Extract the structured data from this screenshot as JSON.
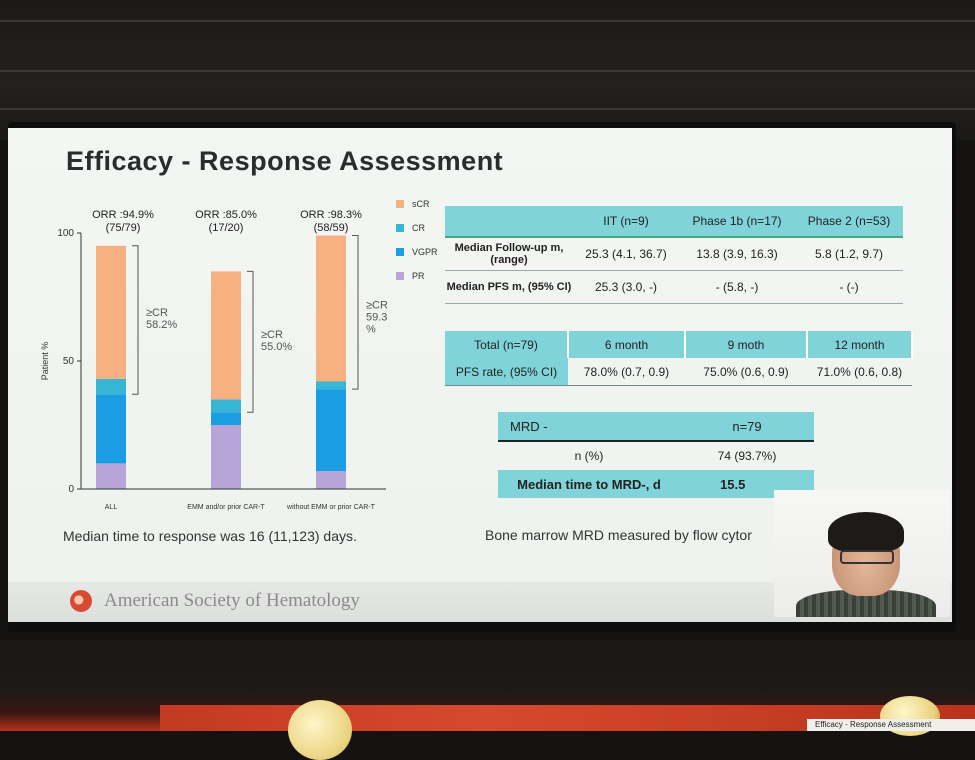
{
  "slide": {
    "title": "Efficacy - Response Assessment",
    "legend": [
      {
        "label": "sCR",
        "color": "#f6b081"
      },
      {
        "label": "CR",
        "color": "#36b6d4"
      },
      {
        "label": "VGPR",
        "color": "#1a9de3"
      },
      {
        "label": "PR",
        "color": "#b6a5d6"
      }
    ],
    "caption_left": "Median time to response was 16 (11,123) days.",
    "caption_right": "Bone marrow MRD measured by flow cytor",
    "table_followup": {
      "headers": [
        "",
        "IIT (n=9)",
        "Phase 1b (n=17)",
        "Phase 2 (n=53)"
      ],
      "rows": [
        [
          "Median Follow-up m, (range)",
          "25.3 (4.1, 36.7)",
          "13.8 (3.9, 16.3)",
          "5.8 (1.2, 9.7)"
        ],
        [
          "Median PFS m, (95% CI)",
          "25.3 (3.0, -)",
          "- (5.8, -)",
          "- (-)"
        ]
      ]
    },
    "table_pfs": {
      "headers": [
        "Total (n=79)",
        "6 month",
        "9 moth",
        "12 month"
      ],
      "row": [
        "PFS rate, (95% CI)",
        "78.0% (0.7, 0.9)",
        "75.0% (0.6, 0.9)",
        "71.0% (0.6, 0.8)"
      ]
    },
    "table_mrd": {
      "header": [
        "MRD -",
        "n=79"
      ],
      "row1": [
        "n (%)",
        "74 (93.7%)"
      ],
      "row2": [
        "Median time to MRD-, d",
        "15.5"
      ]
    },
    "footer_org": "American Society of Hematology"
  },
  "chart_data": {
    "type": "bar",
    "stacked": true,
    "ylabel": "Patient %",
    "ylim": [
      0,
      100
    ],
    "yticks": [
      0,
      50,
      100
    ],
    "categories": [
      "ALL",
      "EMM and/or prior CAR-T",
      "without EMM or prior CAR-T"
    ],
    "series": [
      {
        "name": "PR",
        "color": "#b6a5d6",
        "values": [
          10,
          25,
          7
        ]
      },
      {
        "name": "VGPR",
        "color": "#1a9de3",
        "values": [
          27,
          5,
          32
        ]
      },
      {
        "name": "CR",
        "color": "#36b6d4",
        "values": [
          6,
          5,
          3
        ]
      },
      {
        "name": "sCR",
        "color": "#f6b081",
        "values": [
          52,
          50,
          57
        ]
      }
    ],
    "orr_labels": [
      "ORR :94.9%",
      "ORR :85.0%",
      "ORR :98.3%"
    ],
    "orr_counts": [
      "(75/79)",
      "(17/20)",
      "(58/59)"
    ],
    "cr_labels": [
      [
        "≥CR",
        "58.2%"
      ],
      [
        "≥CR",
        "55.0%"
      ],
      [
        "≥CR",
        "59.3",
        "%"
      ]
    ]
  },
  "banner_text": "Efficacy - Response Assessment"
}
